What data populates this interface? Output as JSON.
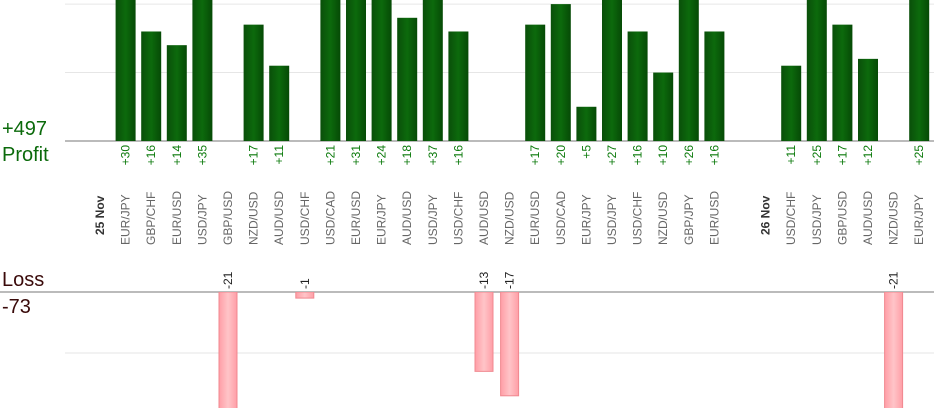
{
  "chart_data": {
    "type": "bar",
    "categories": [
      "25 Nov",
      "EUR/JPY",
      "GBP/CHF",
      "EUR/USD",
      "USD/JPY",
      "GBP/USD",
      "NZD/USD",
      "AUD/USD",
      "USD/CHF",
      "USD/CAD",
      "EUR/USD",
      "EUR/JPY",
      "AUD/USD",
      "USD/JPY",
      "USD/CHF",
      "AUD/USD",
      "NZD/USD",
      "EUR/USD",
      "USD/CAD",
      "EUR/JPY",
      "USD/JPY",
      "USD/CHF",
      "NZD/USD",
      "GBP/JPY",
      "EUR/USD",
      null,
      "26 Nov",
      "USD/CHF",
      "USD/JPY",
      "GBP/USD",
      "AUD/USD",
      "NZD/USD",
      "EUR/JPY"
    ],
    "values": [
      null,
      30,
      16,
      14,
      35,
      -21,
      17,
      11,
      -1,
      21,
      31,
      24,
      18,
      37,
      16,
      -13,
      -17,
      17,
      20,
      5,
      27,
      16,
      10,
      26,
      16,
      null,
      null,
      11,
      25,
      17,
      12,
      -21,
      25
    ],
    "value_labels": [
      null,
      "+30",
      "+16",
      "+14",
      "+35",
      "-21",
      "+17",
      "+11",
      "-1",
      "+21",
      "+31",
      "+24",
      "+18",
      "+37",
      "+16",
      "-13",
      "-17",
      "+17",
      "+20",
      "+5",
      "+27",
      "+16",
      "+10",
      "+26",
      "+16",
      null,
      null,
      "+11",
      "+25",
      "+17",
      "+12",
      "-21",
      "+25"
    ],
    "profit": {
      "label": "Profit",
      "total": {
        "value": 497,
        "label": "+497"
      },
      "color": "#0b5e0b",
      "ylim": [
        0,
        20.6
      ],
      "yticks": [
        0,
        10,
        20
      ]
    },
    "loss": {
      "label": "Loss",
      "total": {
        "value": -73,
        "label": "-73"
      },
      "color": "#ffb3b8",
      "ylim": [
        0,
        -19
      ],
      "yticks": [
        0,
        -10
      ]
    },
    "grid": true
  }
}
